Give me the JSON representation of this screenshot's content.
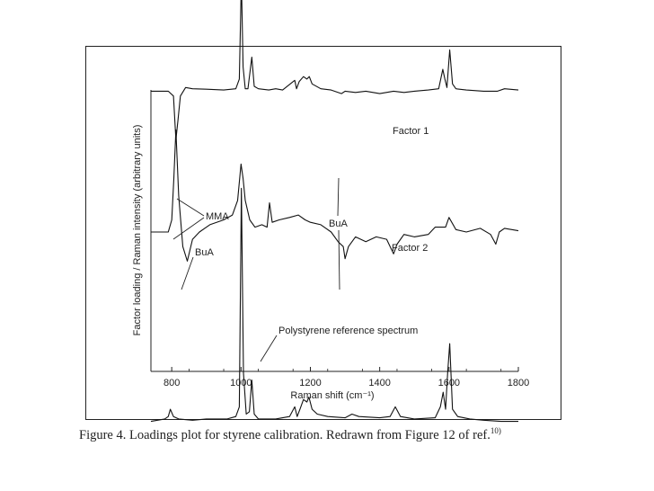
{
  "chart_data": {
    "type": "line",
    "title": "",
    "xlabel": "Raman shift (cm⁻¹)",
    "ylabel": "Factor loading / Raman intensity (arbitrary units)",
    "xlim": [
      740,
      1800
    ],
    "xticks": [
      800,
      1000,
      1200,
      1400,
      1600,
      1800
    ],
    "grid": false,
    "legend": "none",
    "series": [
      {
        "name": "Factor 1",
        "offset": 0.58,
        "x": [
          740,
          790,
          805,
          812,
          818,
          825,
          840,
          860,
          900,
          950,
          985,
          995,
          1001,
          1006,
          1012,
          1020,
          1031,
          1038,
          1050,
          1080,
          1100,
          1120,
          1155,
          1160,
          1168,
          1180,
          1190,
          1197,
          1205,
          1230,
          1260,
          1290,
          1300,
          1330,
          1360,
          1400,
          1440,
          1470,
          1500,
          1540,
          1570,
          1582,
          1588,
          1594,
          1602,
          1610,
          1620,
          1650,
          1700,
          1740,
          1760,
          1800
        ],
        "y": [
          0,
          0,
          -0.02,
          -0.2,
          -0.12,
          -0.02,
          0.015,
          0.01,
          0.008,
          0.005,
          0.01,
          0.05,
          0.46,
          0.1,
          0.01,
          0.01,
          0.14,
          0.02,
          0.01,
          0.005,
          0.01,
          0.005,
          0.045,
          0.01,
          0.04,
          0.06,
          0.05,
          0.06,
          0.03,
          0.01,
          0.005,
          -0.01,
          0.0,
          -0.005,
          0.0,
          -0.01,
          0.0,
          -0.005,
          0.0,
          0.005,
          0.01,
          0.09,
          0.05,
          0.015,
          0.17,
          0.03,
          0.01,
          0.005,
          0.0,
          0.0,
          0.01,
          0.005
        ]
      },
      {
        "name": "Factor 2",
        "offset": 0.0,
        "x": [
          740,
          790,
          800,
          806,
          812,
          820,
          832,
          845,
          860,
          880,
          910,
          950,
          975,
          990,
          1000,
          1006,
          1012,
          1025,
          1040,
          1060,
          1075,
          1082,
          1090,
          1110,
          1140,
          1165,
          1185,
          1200,
          1230,
          1260,
          1280,
          1295,
          1300,
          1310,
          1330,
          1360,
          1390,
          1420,
          1440,
          1450,
          1470,
          1500,
          1540,
          1560,
          1590,
          1600,
          1620,
          1650,
          1690,
          1720,
          1735,
          1745,
          1760,
          1800
        ],
        "y": [
          0,
          0,
          0.05,
          0.22,
          0.42,
          0.15,
          -0.06,
          -0.12,
          -0.03,
          0.0,
          0.03,
          0.05,
          0.07,
          0.13,
          0.28,
          0.22,
          0.13,
          0.05,
          0.02,
          0.03,
          0.02,
          0.12,
          0.04,
          0.05,
          0.06,
          0.07,
          0.05,
          0.04,
          0.03,
          0.0,
          -0.04,
          -0.06,
          -0.11,
          -0.06,
          -0.02,
          -0.04,
          -0.02,
          -0.03,
          -0.09,
          -0.05,
          -0.01,
          -0.02,
          -0.01,
          0.02,
          0.02,
          0.06,
          0.01,
          0.0,
          0.015,
          -0.01,
          -0.05,
          0.0,
          0.015,
          0.005
        ]
      },
      {
        "name": "Polystyrene reference spectrum",
        "offset": -0.78,
        "x": [
          740,
          780,
          790,
          796,
          805,
          820,
          860,
          900,
          960,
          985,
          995,
          1001,
          1007,
          1015,
          1024,
          1031,
          1038,
          1050,
          1100,
          1140,
          1155,
          1162,
          1170,
          1180,
          1190,
          1196,
          1205,
          1220,
          1250,
          1300,
          1320,
          1340,
          1400,
          1430,
          1445,
          1460,
          1500,
          1560,
          1575,
          1583,
          1590,
          1596,
          1602,
          1610,
          1625,
          1660,
          1700,
          1750,
          1800
        ],
        "y": [
          0,
          0.01,
          0.02,
          0.05,
          0.02,
          0.01,
          0.005,
          0.01,
          0.01,
          0.02,
          0.06,
          0.96,
          0.2,
          0.03,
          0.04,
          0.17,
          0.03,
          0.01,
          0.01,
          0.02,
          0.06,
          0.02,
          0.05,
          0.09,
          0.08,
          0.1,
          0.05,
          0.03,
          0.02,
          0.015,
          0.03,
          0.02,
          0.015,
          0.02,
          0.06,
          0.02,
          0.01,
          0.015,
          0.06,
          0.12,
          0.05,
          0.2,
          0.32,
          0.05,
          0.02,
          0.01,
          0.005,
          0.0,
          0.0
        ]
      }
    ],
    "annotations": {
      "factor1": "Factor 1",
      "factor2": "Factor 2",
      "mma": "MMA",
      "bua_left": "BuA",
      "bua_right": "BuA",
      "reference": "Polystyrene reference spectrum"
    }
  },
  "caption": {
    "text": "Figure 4. Loadings plot for styrene calibration. Redrawn from Figure 12 of  ref.",
    "superscript": "10)"
  }
}
